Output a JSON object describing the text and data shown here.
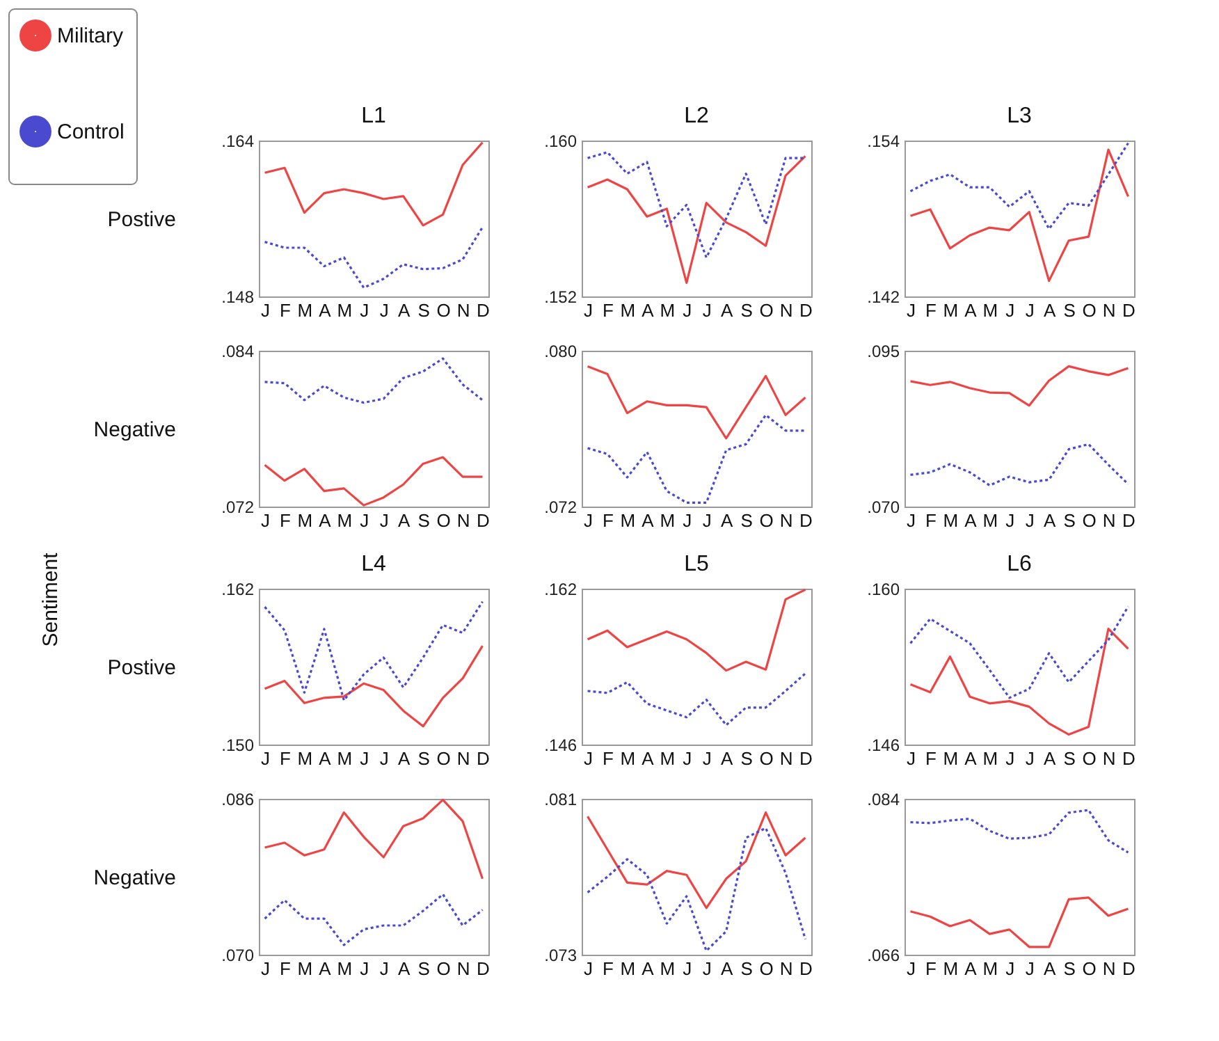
{
  "chart_data": [
    {
      "type": "line",
      "title": "L1",
      "ylabel": "Postive",
      "legend": "top left",
      "annotations": [
        "Sentiment"
      ],
      "categories": [
        "J",
        "F",
        "M",
        "A",
        "M",
        "J",
        "J",
        "A",
        "S",
        "O",
        "N",
        "D"
      ],
      "ylim": [
        0.148,
        0.164
      ],
      "yticks": [
        {
          "value": 0.148,
          "label": ".148"
        },
        {
          "value": 0.164,
          "label": ".164"
        }
      ],
      "series": [
        {
          "name": "Military",
          "color": "#ee4444",
          "line_style": "solid",
          "values": [
            0.1607,
            0.1612,
            0.1566,
            0.1586,
            0.159,
            0.1586,
            0.158,
            0.1583,
            0.1553,
            0.1564,
            0.1615,
            0.1638
          ]
        },
        {
          "name": "Control",
          "color": "#4a4ad0",
          "line_style": "dotted",
          "values": [
            0.1536,
            0.153,
            0.153,
            0.1511,
            0.152,
            0.1489,
            0.1498,
            0.1513,
            0.1508,
            0.1509,
            0.1518,
            0.1551
          ]
        }
      ]
    },
    {
      "type": "line",
      "title": "L2",
      "categories": [
        "J",
        "F",
        "M",
        "A",
        "M",
        "J",
        "J",
        "A",
        "S",
        "O",
        "N",
        "D"
      ],
      "ylim": [
        0.152,
        0.16
      ],
      "yticks": [
        {
          "value": 0.152,
          "label": ".152"
        },
        {
          "value": 0.16,
          "label": ".160"
        }
      ],
      "series": [
        {
          "name": "Military",
          "color": "#ee4444",
          "line_style": "solid",
          "values": [
            0.1576,
            0.158,
            0.1575,
            0.1561,
            0.1565,
            0.1527,
            0.1568,
            0.1558,
            0.1553,
            0.1546,
            0.1582,
            0.1592
          ]
        },
        {
          "name": "Control",
          "color": "#4a4ad0",
          "line_style": "dotted",
          "values": [
            0.1591,
            0.1594,
            0.1583,
            0.1589,
            0.1556,
            0.1567,
            0.154,
            0.156,
            0.1583,
            0.1557,
            0.1591,
            0.1591
          ]
        }
      ]
    },
    {
      "type": "line",
      "title": "L3",
      "categories": [
        "J",
        "F",
        "M",
        "A",
        "M",
        "J",
        "J",
        "A",
        "S",
        "O",
        "N",
        "D"
      ],
      "ylim": [
        0.142,
        0.154
      ],
      "yticks": [
        {
          "value": 0.142,
          "label": ".142"
        },
        {
          "value": 0.154,
          "label": ".154"
        }
      ],
      "series": [
        {
          "name": "Military",
          "color": "#ee4444",
          "line_style": "solid",
          "values": [
            0.1482,
            0.1487,
            0.1457,
            0.1467,
            0.1473,
            0.1471,
            0.1485,
            0.1432,
            0.1463,
            0.1466,
            0.1533,
            0.1497
          ]
        },
        {
          "name": "Control",
          "color": "#4a4ad0",
          "line_style": "dotted",
          "values": [
            0.1501,
            0.1509,
            0.1514,
            0.1504,
            0.1504,
            0.1489,
            0.1501,
            0.1472,
            0.1492,
            0.149,
            0.1514,
            0.1538
          ]
        }
      ]
    },
    {
      "type": "line",
      "ylabel": "Negative",
      "categories": [
        "J",
        "F",
        "M",
        "A",
        "M",
        "J",
        "J",
        "A",
        "S",
        "O",
        "N",
        "D"
      ],
      "ylim": [
        0.072,
        0.084
      ],
      "yticks": [
        {
          "value": 0.072,
          "label": ".072"
        },
        {
          "value": 0.084,
          "label": ".084"
        }
      ],
      "series": [
        {
          "name": "Military",
          "color": "#ee4444",
          "line_style": "solid",
          "values": [
            0.0752,
            0.074,
            0.0749,
            0.0732,
            0.0734,
            0.0721,
            0.0727,
            0.0737,
            0.0753,
            0.0758,
            0.0743,
            0.0743
          ]
        },
        {
          "name": "Control",
          "color": "#4a4ad0",
          "line_style": "dotted",
          "values": [
            0.0816,
            0.0815,
            0.0802,
            0.0813,
            0.0804,
            0.08,
            0.0803,
            0.0819,
            0.0824,
            0.0834,
            0.0814,
            0.0802
          ]
        }
      ]
    },
    {
      "type": "line",
      "categories": [
        "J",
        "F",
        "M",
        "A",
        "M",
        "J",
        "J",
        "A",
        "S",
        "O",
        "N",
        "D"
      ],
      "ylim": [
        0.072,
        0.08
      ],
      "yticks": [
        {
          "value": 0.072,
          "label": ".072"
        },
        {
          "value": 0.08,
          "label": ".080"
        }
      ],
      "series": [
        {
          "name": "Military",
          "color": "#ee4444",
          "line_style": "solid",
          "values": [
            0.0792,
            0.0788,
            0.0768,
            0.0774,
            0.0772,
            0.0772,
            0.0771,
            0.0755,
            0.0771,
            0.0787,
            0.0767,
            0.0776
          ]
        },
        {
          "name": "Control",
          "color": "#4a4ad0",
          "line_style": "dotted",
          "values": [
            0.075,
            0.0747,
            0.0735,
            0.0748,
            0.0728,
            0.0722,
            0.0722,
            0.0749,
            0.0752,
            0.0767,
            0.0759,
            0.0759
          ]
        }
      ]
    },
    {
      "type": "line",
      "categories": [
        "J",
        "F",
        "M",
        "A",
        "M",
        "J",
        "J",
        "A",
        "S",
        "O",
        "N",
        "D"
      ],
      "ylim": [
        0.07,
        0.095
      ],
      "yticks": [
        {
          "value": 0.07,
          "label": ".070"
        },
        {
          "value": 0.095,
          "label": ".095"
        }
      ],
      "series": [
        {
          "name": "Military",
          "color": "#ee4444",
          "line_style": "solid",
          "values": [
            0.0901,
            0.0895,
            0.09,
            0.089,
            0.0883,
            0.0882,
            0.0862,
            0.0902,
            0.0925,
            0.0917,
            0.0911,
            0.0922
          ]
        },
        {
          "name": "Control",
          "color": "#4a4ad0",
          "line_style": "dotted",
          "values": [
            0.0751,
            0.0755,
            0.0768,
            0.0755,
            0.0734,
            0.0748,
            0.0739,
            0.0743,
            0.0792,
            0.08,
            0.0767,
            0.0736
          ]
        }
      ]
    },
    {
      "type": "line",
      "title": "L4",
      "ylabel": "Postive",
      "categories": [
        "J",
        "F",
        "M",
        "A",
        "M",
        "J",
        "J",
        "A",
        "S",
        "O",
        "N",
        "D"
      ],
      "ylim": [
        0.15,
        0.162
      ],
      "yticks": [
        {
          "value": 0.15,
          "label": ".150"
        },
        {
          "value": 0.162,
          "label": ".162"
        }
      ],
      "series": [
        {
          "name": "Military",
          "color": "#ee4444",
          "line_style": "solid",
          "values": [
            0.1543,
            0.1549,
            0.1532,
            0.1536,
            0.1537,
            0.1547,
            0.1542,
            0.1526,
            0.1514,
            0.1536,
            0.1551,
            0.1576
          ]
        },
        {
          "name": "Control",
          "color": "#4a4ad0",
          "line_style": "dotted",
          "values": [
            0.1606,
            0.1588,
            0.154,
            0.1589,
            0.1534,
            0.1554,
            0.1567,
            0.1544,
            0.1567,
            0.1592,
            0.1586,
            0.161
          ]
        }
      ]
    },
    {
      "type": "line",
      "title": "L5",
      "categories": [
        "J",
        "F",
        "M",
        "A",
        "M",
        "J",
        "J",
        "A",
        "S",
        "O",
        "N",
        "D"
      ],
      "ylim": [
        0.146,
        0.162
      ],
      "yticks": [
        {
          "value": 0.146,
          "label": ".146"
        },
        {
          "value": 0.162,
          "label": ".162"
        }
      ],
      "series": [
        {
          "name": "Military",
          "color": "#ee4444",
          "line_style": "solid",
          "values": [
            0.1568,
            0.1577,
            0.156,
            0.1568,
            0.1576,
            0.1568,
            0.1554,
            0.1536,
            0.1545,
            0.1537,
            0.1609,
            0.1619
          ]
        },
        {
          "name": "Control",
          "color": "#4a4ad0",
          "line_style": "dotted",
          "values": [
            0.1515,
            0.1513,
            0.1524,
            0.1502,
            0.1495,
            0.1488,
            0.1506,
            0.148,
            0.1498,
            0.1498,
            0.1515,
            0.1533
          ]
        }
      ]
    },
    {
      "type": "line",
      "title": "L6",
      "categories": [
        "J",
        "F",
        "M",
        "A",
        "M",
        "J",
        "J",
        "A",
        "S",
        "O",
        "N",
        "D"
      ],
      "ylim": [
        0.146,
        0.16
      ],
      "yticks": [
        {
          "value": 0.146,
          "label": ".146"
        },
        {
          "value": 0.16,
          "label": ".160"
        }
      ],
      "series": [
        {
          "name": "Military",
          "color": "#ee4444",
          "line_style": "solid",
          "values": [
            0.1514,
            0.1507,
            0.1539,
            0.1503,
            0.1497,
            0.1499,
            0.1494,
            0.1479,
            0.1469,
            0.1476,
            0.1564,
            0.1546
          ]
        },
        {
          "name": "Control",
          "color": "#4a4ad0",
          "line_style": "dotted",
          "values": [
            0.1551,
            0.1573,
            0.1562,
            0.1551,
            0.1527,
            0.1502,
            0.151,
            0.1542,
            0.1516,
            0.1535,
            0.1554,
            0.1584
          ]
        }
      ]
    },
    {
      "type": "line",
      "ylabel": "Negative",
      "categories": [
        "J",
        "F",
        "M",
        "A",
        "M",
        "J",
        "J",
        "A",
        "S",
        "O",
        "N",
        "D"
      ],
      "ylim": [
        0.07,
        0.086
      ],
      "yticks": [
        {
          "value": 0.07,
          "label": ".070"
        },
        {
          "value": 0.086,
          "label": ".086"
        }
      ],
      "series": [
        {
          "name": "Military",
          "color": "#ee4444",
          "line_style": "solid",
          "values": [
            0.081,
            0.0815,
            0.0802,
            0.0808,
            0.0846,
            0.0821,
            0.08,
            0.0832,
            0.084,
            0.0859,
            0.0837,
            0.0778
          ]
        },
        {
          "name": "Control",
          "color": "#4a4ad0",
          "line_style": "dotted",
          "values": [
            0.0737,
            0.0756,
            0.0737,
            0.0737,
            0.071,
            0.0726,
            0.073,
            0.073,
            0.0745,
            0.0762,
            0.073,
            0.0746
          ]
        }
      ]
    },
    {
      "type": "line",
      "categories": [
        "J",
        "F",
        "M",
        "A",
        "M",
        "J",
        "J",
        "A",
        "S",
        "O",
        "N",
        "D"
      ],
      "ylim": [
        0.073,
        0.081
      ],
      "yticks": [
        {
          "value": 0.073,
          "label": ".073"
        },
        {
          "value": 0.081,
          "label": ".081"
        }
      ],
      "series": [
        {
          "name": "Military",
          "color": "#ee4444",
          "line_style": "solid",
          "values": [
            0.0801,
            0.0784,
            0.0767,
            0.0766,
            0.0773,
            0.0771,
            0.0754,
            0.0769,
            0.0778,
            0.0803,
            0.0781,
            0.079
          ]
        },
        {
          "name": "Control",
          "color": "#4a4ad0",
          "line_style": "dotted",
          "values": [
            0.0762,
            0.077,
            0.0779,
            0.0771,
            0.0746,
            0.076,
            0.0732,
            0.0742,
            0.079,
            0.0795,
            0.0772,
            0.0738
          ]
        }
      ]
    },
    {
      "type": "line",
      "categories": [
        "J",
        "F",
        "M",
        "A",
        "M",
        "J",
        "J",
        "A",
        "S",
        "O",
        "N",
        "D"
      ],
      "ylim": [
        0.066,
        0.084
      ],
      "yticks": [
        {
          "value": 0.066,
          "label": ".066"
        },
        {
          "value": 0.084,
          "label": ".084"
        }
      ],
      "series": [
        {
          "name": "Military",
          "color": "#ee4444",
          "line_style": "solid",
          "values": [
            0.071,
            0.0704,
            0.0693,
            0.07,
            0.0684,
            0.0689,
            0.0669,
            0.0669,
            0.0724,
            0.0726,
            0.0705,
            0.0713
          ]
        },
        {
          "name": "Control",
          "color": "#4a4ad0",
          "line_style": "dotted",
          "values": [
            0.0813,
            0.0812,
            0.0815,
            0.0817,
            0.0803,
            0.0794,
            0.0795,
            0.0799,
            0.0824,
            0.0827,
            0.0792,
            0.0778
          ]
        }
      ]
    }
  ]
}
